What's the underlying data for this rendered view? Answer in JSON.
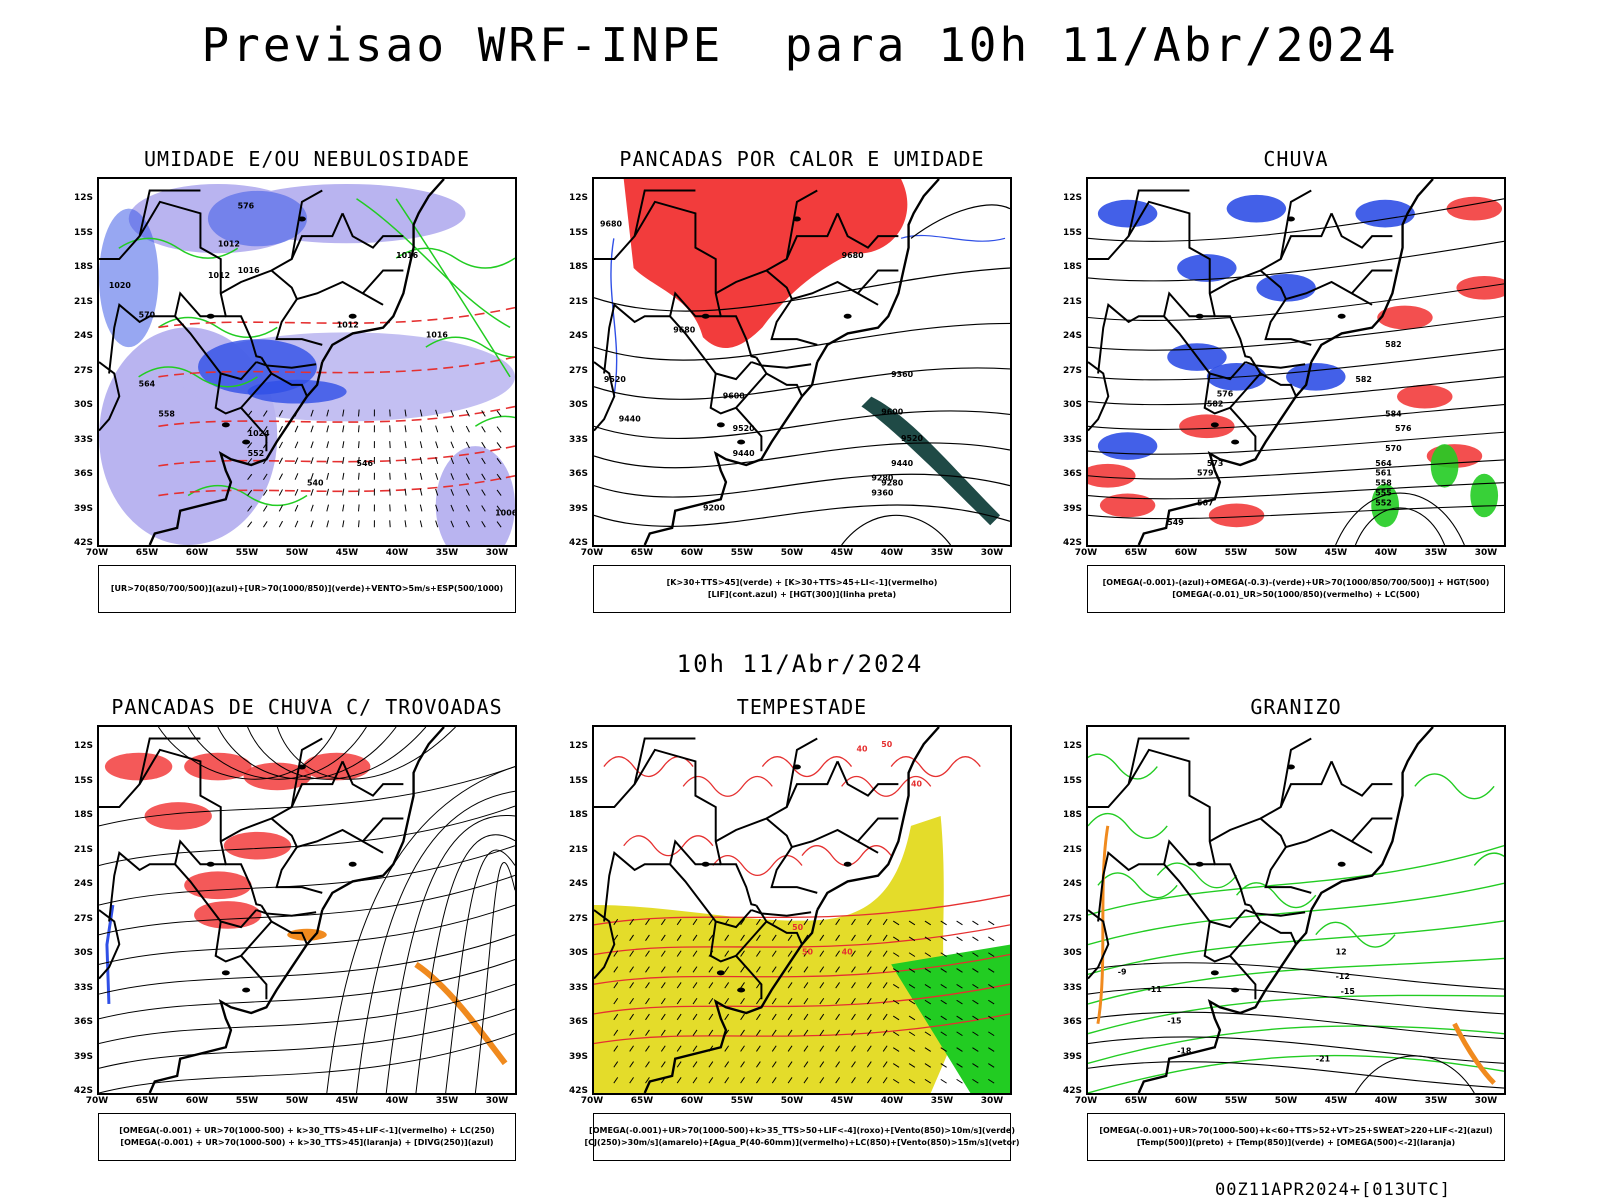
{
  "header": {
    "title": "Previsao WRF-INPE  para 10h 11/Abr/2024",
    "middle_date": "10h 11/Abr/2024",
    "footer": "00Z11APR2024+[013UTC]"
  },
  "axes": {
    "lat_labels": [
      "12S",
      "15S",
      "18S",
      "21S",
      "24S",
      "27S",
      "30S",
      "33S",
      "36S",
      "39S",
      "42S"
    ],
    "lon_labels": [
      "70W",
      "65W",
      "60W",
      "55W",
      "50W",
      "45W",
      "40W",
      "35W",
      "30W"
    ]
  },
  "colors": {
    "blue_fill": "#2f4fe6",
    "light_blue_fill": "#b9b4f0",
    "green_contour": "#22cc22",
    "red_fill": "#f23c3c",
    "orange_fill": "#f08a1e",
    "yellow_fill": "#e4dc2a",
    "dark_teal_fill": "#1f4a46",
    "black_contour": "#000000"
  },
  "panels": [
    {
      "id": "umidade",
      "title": "UMIDADE E/OU NEBULOSIDADE",
      "legend_lines": [
        "[UR>70(850/700/500)](azul)+[UR>70(1000/850)](verde)+VENTO>5m/s+ESP(500/1000)"
      ],
      "contour_labels": [
        "1012",
        "1016",
        "1020",
        "1024",
        "1012",
        "1016",
        "1006",
        "576",
        "570",
        "564",
        "558",
        "552",
        "546",
        "540",
        "1016",
        "1012"
      ]
    },
    {
      "id": "pancadas-calor",
      "title": "PANCADAS POR CALOR E UMIDADE",
      "legend_lines": [
        "[K>30+TTS>45](verde) + [K>30+TTS>45+LI<-1](vermelho)",
        "[LIF](cont.azul) + [HGT(300)](linha preta)"
      ],
      "contour_labels": [
        "9680",
        "9680",
        "9680",
        "9520",
        "9600",
        "9520",
        "9440",
        "9440",
        "9360",
        "9600",
        "9520",
        "9440",
        "9360",
        "9280",
        "9200",
        "9280"
      ]
    },
    {
      "id": "chuva",
      "title": "CHUVA",
      "legend_lines": [
        "[OMEGA(-0.001)-(azul)+OMEGA(-0.3)-(verde)+UR>70(1000/850/700/500)] + HGT(500)",
        "[OMEGA(-0.01)_UR>50(1000/850)(vermelho) + LC(500)"
      ],
      "contour_labels": [
        "582",
        "582",
        "582",
        "579",
        "576",
        "576",
        "573",
        "570",
        "567",
        "564",
        "561",
        "558",
        "555",
        "552",
        "549",
        "584"
      ]
    },
    {
      "id": "trovoadas",
      "title": "PANCADAS DE CHUVA C/ TROVOADAS",
      "legend_lines": [
        "[OMEGA(-0.001) + UR>70(1000-500) + k>30_TTS>45+LIF<-1](vermelho) + LC(250)",
        "[OMEGA(-0.001) + UR>70(1000-500) + k>30_TTS>45](laranja) + [DIVG(250)](azul)"
      ],
      "contour_labels": []
    },
    {
      "id": "tempestade",
      "title": "TEMPESTADE",
      "legend_lines": [
        "[OMEGA(-0.001)+UR>70(1000-500)+k>35_TTS>50+LIF<-4](roxo)+[Vento(850)>10m/s](verde)",
        "[CJ(250)>30m/s](amarelo)+[Agua_P(40-60mm)](vermelho)+LC(850)+[Vento(850)>15m/s](vetor)"
      ],
      "contour_labels": [
        "40",
        "50",
        "40",
        "50",
        "40",
        "50"
      ]
    },
    {
      "id": "granizo",
      "title": "GRANIZO",
      "legend_lines": [
        "[OMEGA(-0.001)+UR>70(1000-500)+k<60+TTS>52+VT>25+SWEAT>220+LIF<-2](azul)",
        "[Temp(500)](preto) + [Temp(850)](verde) + [OMEGA(500)<-2](laranja)"
      ],
      "contour_labels": [
        "-9",
        "-11",
        "-12",
        "-15",
        "-15",
        "-18",
        "-21",
        "12"
      ]
    }
  ]
}
